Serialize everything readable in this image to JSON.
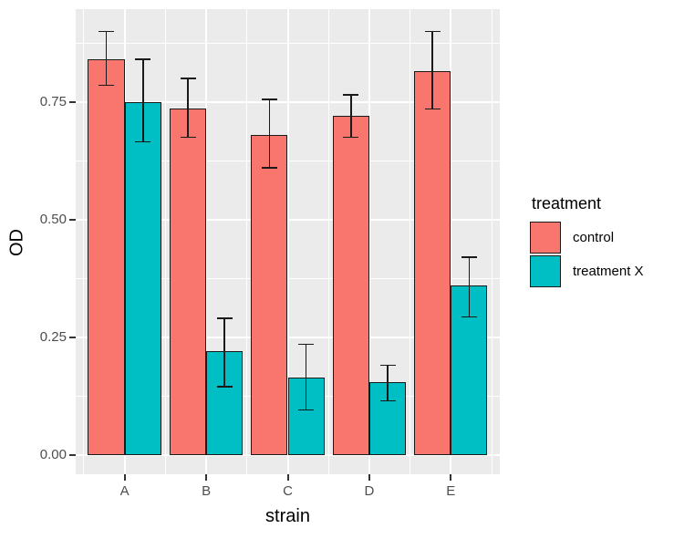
{
  "chart_data": {
    "type": "bar",
    "title": "",
    "xlabel": "strain",
    "ylabel": "OD",
    "categories": [
      "A",
      "B",
      "C",
      "D",
      "E"
    ],
    "series": [
      {
        "name": "control",
        "color": "#F8766D",
        "values": [
          0.84,
          0.735,
          0.68,
          0.72,
          0.815
        ],
        "error_lower": [
          0.785,
          0.675,
          0.61,
          0.675,
          0.735
        ],
        "error_upper": [
          0.9,
          0.8,
          0.755,
          0.765,
          0.9
        ]
      },
      {
        "name": "treatment X",
        "color": "#00BFC4",
        "values": [
          0.75,
          0.22,
          0.165,
          0.155,
          0.36
        ],
        "error_lower": [
          0.665,
          0.145,
          0.095,
          0.115,
          0.293
        ],
        "error_upper": [
          0.84,
          0.29,
          0.235,
          0.19,
          0.42
        ]
      }
    ],
    "legend_title": "treatment",
    "legend_position": "right",
    "y_ticks": [
      {
        "value": 0.0,
        "label": "0.00"
      },
      {
        "value": 0.25,
        "label": "0.25"
      },
      {
        "value": 0.5,
        "label": "0.50"
      },
      {
        "value": 0.75,
        "label": "0.75"
      }
    ],
    "y_minor": [
      0.125,
      0.375,
      0.625,
      0.875
    ],
    "ylim": [
      -0.0413,
      0.947
    ],
    "grid": true,
    "style": {
      "panel_background": "#EBEBEB",
      "grid_color": "#FFFFFF",
      "bar_outline": "#1A1A1A",
      "errorbar_color": "#1A1A1A",
      "tick_color": "#333333",
      "axis_text_color": "#4D4D4D",
      "axis_title_color": "#000000",
      "legend_text_color": "#000000"
    }
  }
}
